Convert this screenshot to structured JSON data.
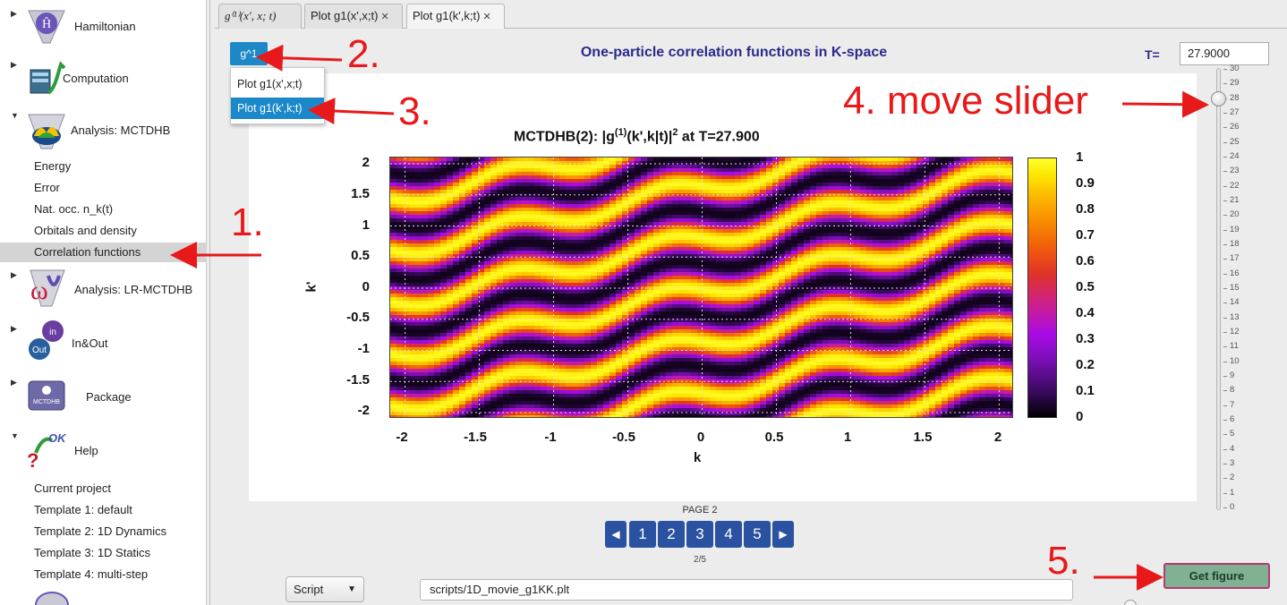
{
  "sidebar": {
    "nodes": [
      {
        "label": "Hamiltonian",
        "icon": "hamiltonian-icon"
      },
      {
        "label": "Computation",
        "icon": "computation-icon"
      },
      {
        "label": "Analysis: MCTDHB",
        "icon": "analysis-mctdhb-icon"
      },
      {
        "label": "Analysis: LR-MCTDHB",
        "icon": "analysis-lr-icon"
      },
      {
        "label": "In&Out",
        "icon": "inout-icon"
      },
      {
        "label": "Package",
        "icon": "package-icon"
      },
      {
        "label": "Help",
        "icon": "help-icon"
      }
    ],
    "analysis_items": [
      "Energy",
      "Error",
      "Nat. occ. n_k(t)",
      "Orbitals and density",
      "Correlation functions"
    ],
    "help_items": [
      "Current project",
      "Template 1: default",
      "Template 2: 1D Dynamics",
      "Template 3: 1D Statics",
      "Template 4: multi-step"
    ],
    "icon_text": {
      "hamiltonian": "Ĥ",
      "inout_top": "in",
      "inout_bottom": "Out",
      "package": "MCTDHB",
      "help": "OK"
    }
  },
  "tabs": [
    {
      "label": "g⁽¹⁾(x′, x; t)",
      "closable": false
    },
    {
      "label": "Plot g1(x',x;t)",
      "closable": true
    },
    {
      "label": "Plot g1(k',k;t)",
      "closable": true
    }
  ],
  "close_glyph": "✕",
  "toolbar": {
    "g_button": "g^1",
    "menu": [
      "Plot g1(x',x;t)",
      "Plot g1(k',k;t)"
    ],
    "title": "One-particle correlation functions in K-space",
    "t_label": "T=",
    "t_value": "27.9000"
  },
  "slider": {
    "min": 0,
    "max": 30,
    "value": 27.9,
    "labels": [
      "30",
      "29",
      "28",
      "27",
      "26",
      "25",
      "24",
      "23",
      "22",
      "21",
      "20",
      "19",
      "18",
      "17",
      "16",
      "15",
      "14",
      "13",
      "12",
      "11",
      "10",
      "9",
      "8",
      "7",
      "6",
      "5",
      "4",
      "3",
      "2",
      "1",
      "0"
    ]
  },
  "plot": {
    "title_prefix": "MCTDHB(2):  |g",
    "title_sup": "(1)",
    "title_mid": "(k',k|t)|",
    "title_sup2": "2",
    "title_suffix": "  at T=27.900",
    "xlabel": "k",
    "ylabel": "k'",
    "xticks": [
      "-2",
      "-1.5",
      "-1",
      "-0.5",
      "0",
      "0.5",
      "1",
      "1.5",
      "2"
    ],
    "yticks": [
      "2",
      "1.5",
      "1",
      "0.5",
      "0",
      "-0.5",
      "-1",
      "-1.5",
      "-2"
    ],
    "cticks": [
      "1",
      "0.9",
      "0.8",
      "0.7",
      "0.6",
      "0.5",
      "0.4",
      "0.3",
      "0.2",
      "0.1",
      "0"
    ]
  },
  "chart_data": {
    "type": "heatmap",
    "title": "MCTDHB(2): |g(1)(k',k|t)|^2 at T=27.900",
    "xlabel": "k",
    "ylabel": "k'",
    "xlim": [
      -2.1,
      2.1
    ],
    "ylim": [
      -2.1,
      2.1
    ],
    "clim": [
      0,
      1
    ],
    "colormap": "black-purple-red-orange-yellow",
    "grid": true
  },
  "pager": {
    "label": "PAGE 2",
    "pages": [
      "1",
      "2",
      "3",
      "4",
      "5"
    ],
    "prev": "◀",
    "next": "▶",
    "count": "2/5"
  },
  "bottom": {
    "script_select": "Script",
    "caret": "▼",
    "script_path": "scripts/1D_movie_g1KK.plt",
    "get_figure": "Get figure"
  },
  "annotations": {
    "a1": "1.",
    "a2": "2.",
    "a3": "3.",
    "a4": "4. move slider",
    "a5": "5."
  }
}
